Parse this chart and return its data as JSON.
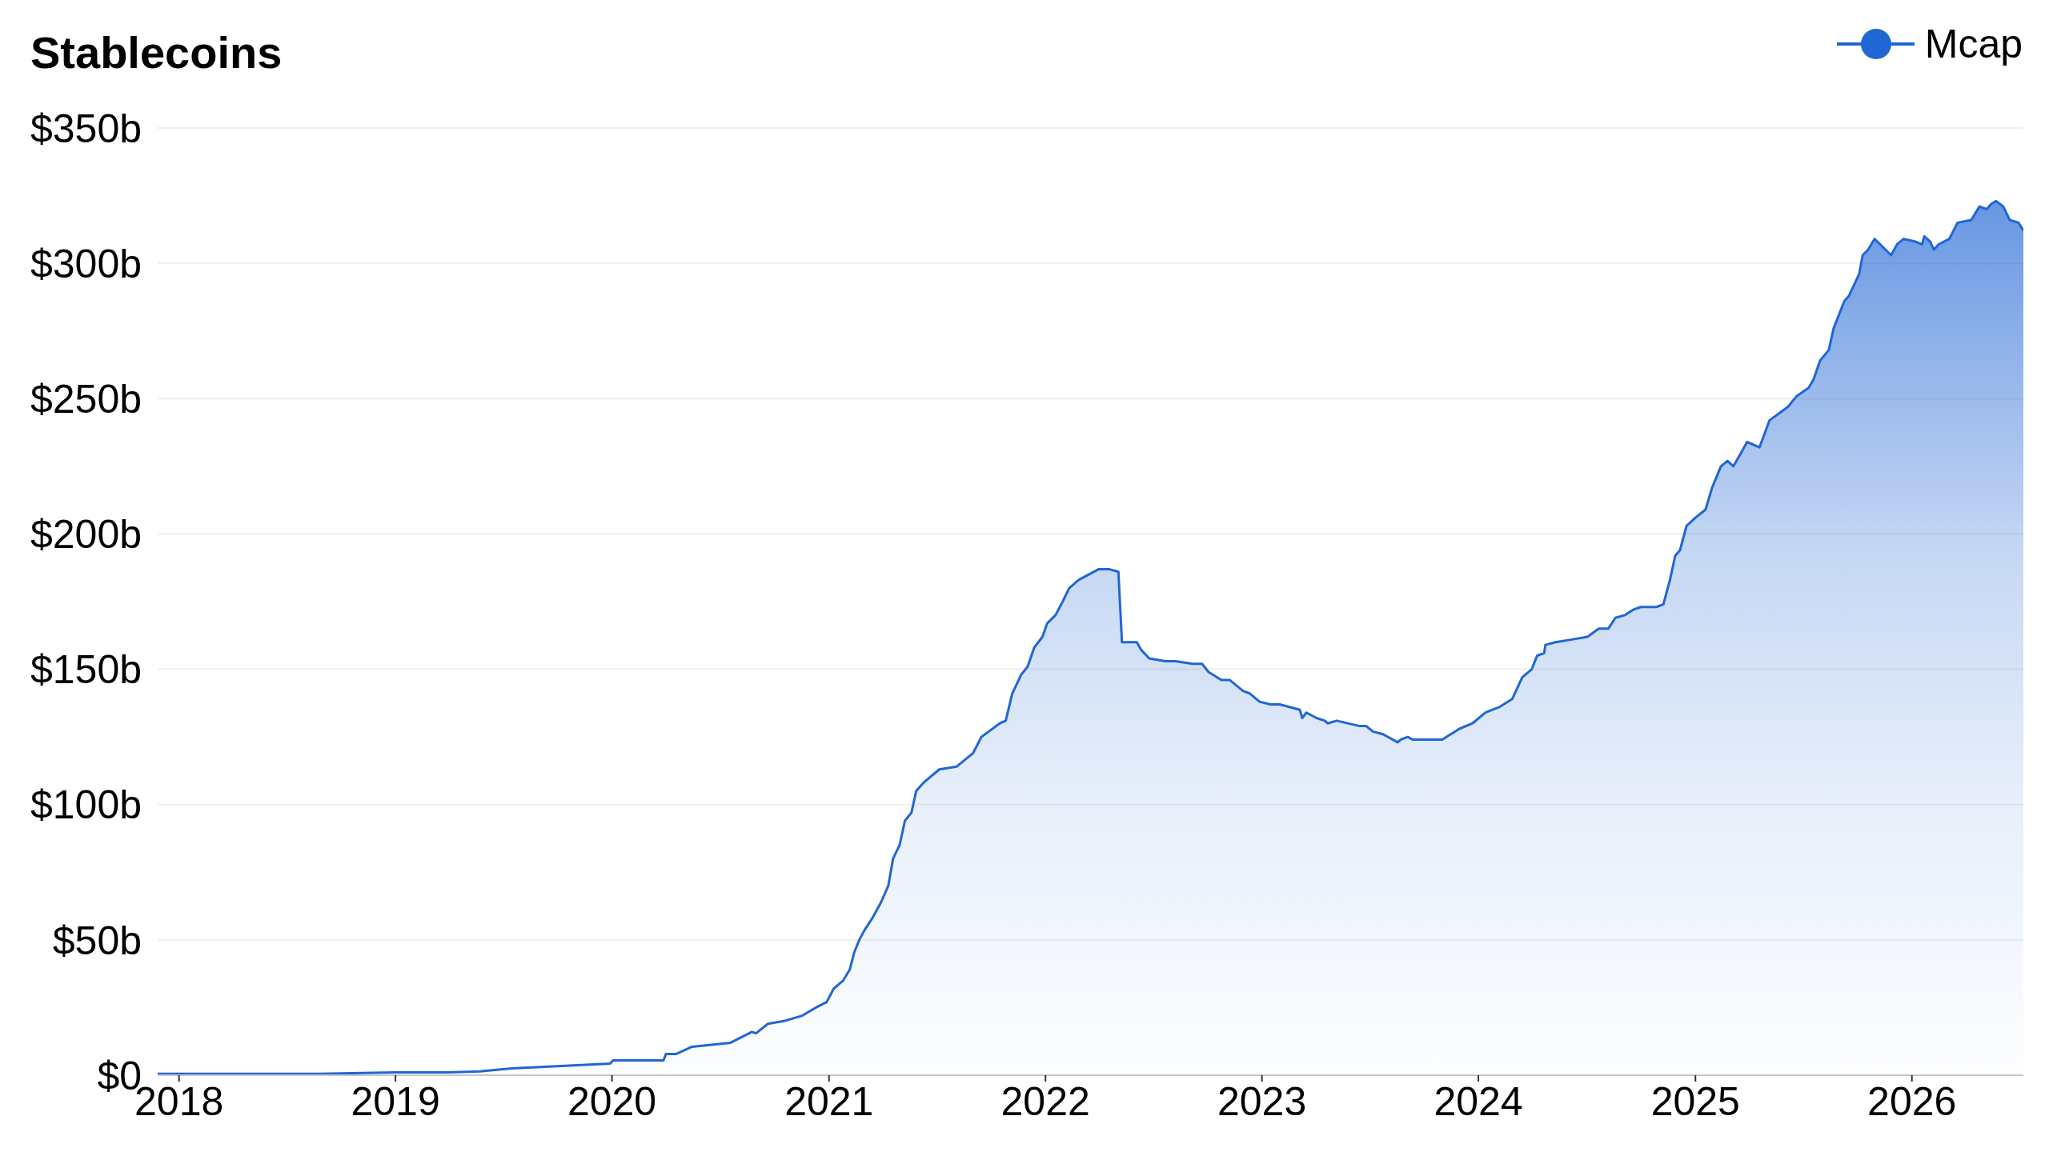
{
  "chart_data": {
    "type": "area",
    "title": "Stablecoins",
    "x": [
      "2017-11-26",
      "2018-08-26",
      "2018-12-31",
      "2019-03-30",
      "2019-05-23",
      "2019-07-16",
      "2019-10-28",
      "2019-12-29",
      "2020-01-03",
      "2020-03-28",
      "2020-04-01",
      "2020-04-18",
      "2020-05-15",
      "2020-07-19",
      "2020-08-24",
      "2020-08-31",
      "2020-09-20",
      "2020-10-17",
      "2020-11-17",
      "2020-12-10",
      "2020-12-28",
      "2021-01-09",
      "2021-01-25",
      "2021-02-05",
      "2021-02-12",
      "2021-02-21",
      "2021-03-03",
      "2021-03-15",
      "2021-03-30",
      "2021-04-11",
      "2021-04-19",
      "2021-04-30",
      "2021-05-09",
      "2021-05-20",
      "2021-05-28",
      "2021-06-09",
      "2021-07-06",
      "2021-08-04",
      "2021-09-01",
      "2021-09-15",
      "2021-10-16",
      "2021-10-26",
      "2021-11-06",
      "2021-11-21",
      "2021-12-02",
      "2021-12-13",
      "2021-12-27",
      "2022-01-04",
      "2022-01-18",
      "2022-01-30",
      "2022-02-10",
      "2022-02-26",
      "2022-03-15",
      "2022-04-01",
      "2022-04-18",
      "2022-05-04",
      "2022-05-10",
      "2022-05-22",
      "2022-06-04",
      "2022-06-12",
      "2022-06-25",
      "2022-07-22",
      "2022-08-08",
      "2022-09-06",
      "2022-09-22",
      "2022-10-03",
      "2022-10-25",
      "2022-11-08",
      "2022-11-30",
      "2022-12-12",
      "2022-12-28",
      "2023-01-15",
      "2023-01-31",
      "2023-03-06",
      "2023-03-10",
      "2023-03-17",
      "2023-04-03",
      "2023-04-17",
      "2023-04-22",
      "2023-05-07",
      "2023-06-15",
      "2023-06-26",
      "2023-07-07",
      "2023-07-24",
      "2023-08-18",
      "2023-08-23",
      "2023-09-04",
      "2023-09-12",
      "2023-10-16",
      "2023-11-01",
      "2023-11-30",
      "2023-12-22",
      "2024-01-13",
      "2024-02-05",
      "2024-02-27",
      "2024-03-15",
      "2024-03-31",
      "2024-04-09",
      "2024-04-21",
      "2024-04-23",
      "2024-05-10",
      "2024-06-07",
      "2024-07-03",
      "2024-07-22",
      "2024-08-07",
      "2024-08-19",
      "2024-09-04",
      "2024-09-18",
      "2024-10-01",
      "2024-10-27",
      "2024-11-08",
      "2024-11-19",
      "2024-11-28",
      "2024-12-06",
      "2024-12-17",
      "2025-01-01",
      "2025-01-18",
      "2025-01-29",
      "2025-02-13",
      "2025-02-24",
      "2025-03-06",
      "2025-03-19",
      "2025-03-29",
      "2025-04-19",
      "2025-05-06",
      "2025-06-06",
      "2025-06-21",
      "2025-07-11",
      "2025-07-19",
      "2025-07-30",
      "2025-08-14",
      "2025-08-22",
      "2025-09-09",
      "2025-09-17",
      "2025-10-04",
      "2025-10-10",
      "2025-10-19",
      "2025-10-30",
      "2025-11-27",
      "2025-12-07",
      "2025-12-18",
      "2026-01-07",
      "2026-01-18",
      "2026-01-22",
      "2026-02-01",
      "2026-02-07",
      "2026-02-15",
      "2026-03-05",
      "2026-03-19",
      "2026-04-11",
      "2026-04-25",
      "2026-05-07",
      "2026-05-15",
      "2026-05-23",
      "2026-06-04",
      "2026-06-15",
      "2026-06-30",
      "2026-07-08"
    ],
    "series": [
      {
        "name": "Mcap",
        "color": "#2066d4",
        "values": [
          0.5,
          0.5,
          1,
          1,
          1.4,
          2.5,
          3.6,
          4.3,
          5.5,
          5.5,
          7.8,
          7.8,
          10.5,
          12,
          16,
          15.5,
          19,
          20,
          22,
          25,
          27,
          32,
          35,
          39,
          45,
          50,
          54,
          58,
          64,
          70,
          80,
          85,
          94,
          97,
          105,
          108,
          113,
          114,
          119,
          125,
          130,
          131,
          141,
          148,
          151,
          158,
          162,
          167,
          170,
          175,
          180,
          183,
          185,
          187,
          187,
          186,
          160,
          160,
          160,
          157,
          154,
          153,
          153,
          152,
          152,
          149,
          146,
          146,
          142,
          141,
          138,
          137,
          137,
          135,
          132,
          134,
          132,
          131,
          130,
          131,
          129,
          129,
          127,
          126,
          123,
          124,
          125,
          124,
          124,
          124,
          128,
          130,
          134,
          136,
          139,
          147,
          150,
          155,
          156,
          159,
          160,
          161,
          162,
          165,
          165,
          169,
          170,
          172,
          173,
          173,
          174,
          183,
          192,
          194,
          203,
          206,
          209,
          217,
          225,
          227,
          225,
          230,
          234,
          232,
          242,
          247,
          251,
          254,
          257,
          264,
          268,
          276,
          286,
          288,
          296,
          303,
          305,
          309,
          303,
          307,
          309,
          308,
          307,
          310,
          308,
          305,
          307,
          309,
          315,
          316,
          321,
          320,
          322,
          323,
          321,
          316,
          315,
          312
        ]
      }
    ],
    "xlim": [
      "2017-11-26",
      "2026-07-08"
    ],
    "xticks": [
      "2018",
      "2019",
      "2020",
      "2021",
      "2022",
      "2023",
      "2024",
      "2025",
      "2026"
    ],
    "ylim": [
      0,
      350
    ],
    "yticks": [
      {
        "value": 0,
        "label": "$0"
      },
      {
        "value": 50,
        "label": "$50b"
      },
      {
        "value": 100,
        "label": "$100b"
      },
      {
        "value": 150,
        "label": "$150b"
      },
      {
        "value": 200,
        "label": "$200b"
      },
      {
        "value": 250,
        "label": "$250b"
      },
      {
        "value": 300,
        "label": "$300b"
      },
      {
        "value": 350,
        "label": "$350b"
      }
    ],
    "grid": "y",
    "legend": "top right"
  }
}
